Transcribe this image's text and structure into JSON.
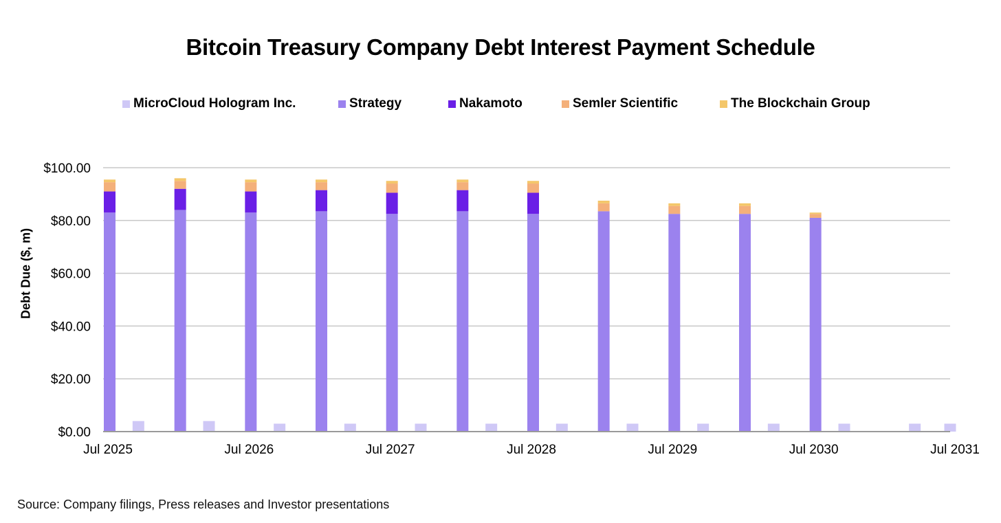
{
  "colors": {
    "microcloud": "#cfc8f6",
    "strategy": "#9b82ee",
    "nakamoto": "#6a1fe6",
    "semler": "#f4b07a",
    "blockchain": "#f4c76a",
    "grid": "#c8c8c8"
  },
  "chart_data": {
    "type": "bar",
    "stacked": true,
    "title": "Bitcoin Treasury Company Debt Interest Payment Schedule",
    "ylabel": "Debt Due ($, m)",
    "xlabel": "",
    "ylim": [
      0,
      100
    ],
    "y_ticks": [
      "$0.00",
      "$20.00",
      "$40.00",
      "$60.00",
      "$80.00",
      "$100.00"
    ],
    "x_ticks": [
      "Jul 2025",
      "Jul 2026",
      "Jul 2027",
      "Jul 2028",
      "Jul 2029",
      "Jul 2030",
      "Jul 2031"
    ],
    "x_range": [
      "2025-07",
      "2031-07"
    ],
    "legend_position": "top",
    "grid": true,
    "source": "Source: Company filings, Press releases and Investor presentations",
    "legend": [
      {
        "key": "microcloud",
        "name": "MicroCloud Hologram Inc."
      },
      {
        "key": "strategy",
        "name": "Strategy"
      },
      {
        "key": "nakamoto",
        "name": "Nakamoto"
      },
      {
        "key": "semler",
        "name": "Semler Scientific"
      },
      {
        "key": "blockchain",
        "name": "The Blockchain Group"
      }
    ],
    "stacked_bars": [
      {
        "date": "2025-07",
        "strategy": 83.0,
        "nakamoto": 8.0,
        "semler": 3.5,
        "blockchain": 1.0
      },
      {
        "date": "2026-01",
        "strategy": 84.0,
        "nakamoto": 8.0,
        "semler": 3.0,
        "blockchain": 1.0
      },
      {
        "date": "2026-07",
        "strategy": 83.0,
        "nakamoto": 8.0,
        "semler": 3.5,
        "blockchain": 1.0
      },
      {
        "date": "2027-01",
        "strategy": 83.5,
        "nakamoto": 8.0,
        "semler": 3.0,
        "blockchain": 1.0
      },
      {
        "date": "2027-07",
        "strategy": 82.5,
        "nakamoto": 8.0,
        "semler": 3.5,
        "blockchain": 1.0
      },
      {
        "date": "2028-01",
        "strategy": 83.5,
        "nakamoto": 8.0,
        "semler": 3.0,
        "blockchain": 1.0
      },
      {
        "date": "2028-07",
        "strategy": 82.5,
        "nakamoto": 8.0,
        "semler": 3.5,
        "blockchain": 1.0
      },
      {
        "date": "2029-01",
        "strategy": 83.5,
        "nakamoto": 0,
        "semler": 3.0,
        "blockchain": 1.0
      },
      {
        "date": "2029-07",
        "strategy": 82.5,
        "nakamoto": 0,
        "semler": 3.0,
        "blockchain": 1.0
      },
      {
        "date": "2030-01",
        "strategy": 82.5,
        "nakamoto": 0,
        "semler": 3.0,
        "blockchain": 1.0
      },
      {
        "date": "2030-07",
        "strategy": 81.0,
        "nakamoto": 0,
        "semler": 1.5,
        "blockchain": 0.5
      }
    ],
    "microcloud_bars": [
      {
        "date": "2025-10",
        "value": 4.0
      },
      {
        "date": "2026-04",
        "value": 4.0
      },
      {
        "date": "2026-10",
        "value": 3.0
      },
      {
        "date": "2027-04",
        "value": 3.0
      },
      {
        "date": "2027-10",
        "value": 3.0
      },
      {
        "date": "2028-04",
        "value": 3.0
      },
      {
        "date": "2028-10",
        "value": 3.0
      },
      {
        "date": "2029-04",
        "value": 3.0
      },
      {
        "date": "2029-10",
        "value": 3.0
      },
      {
        "date": "2030-04",
        "value": 3.0
      },
      {
        "date": "2030-10",
        "value": 3.0
      },
      {
        "date": "2031-04",
        "value": 3.0
      },
      {
        "date": "2031-07",
        "value": 3.0
      }
    ]
  }
}
